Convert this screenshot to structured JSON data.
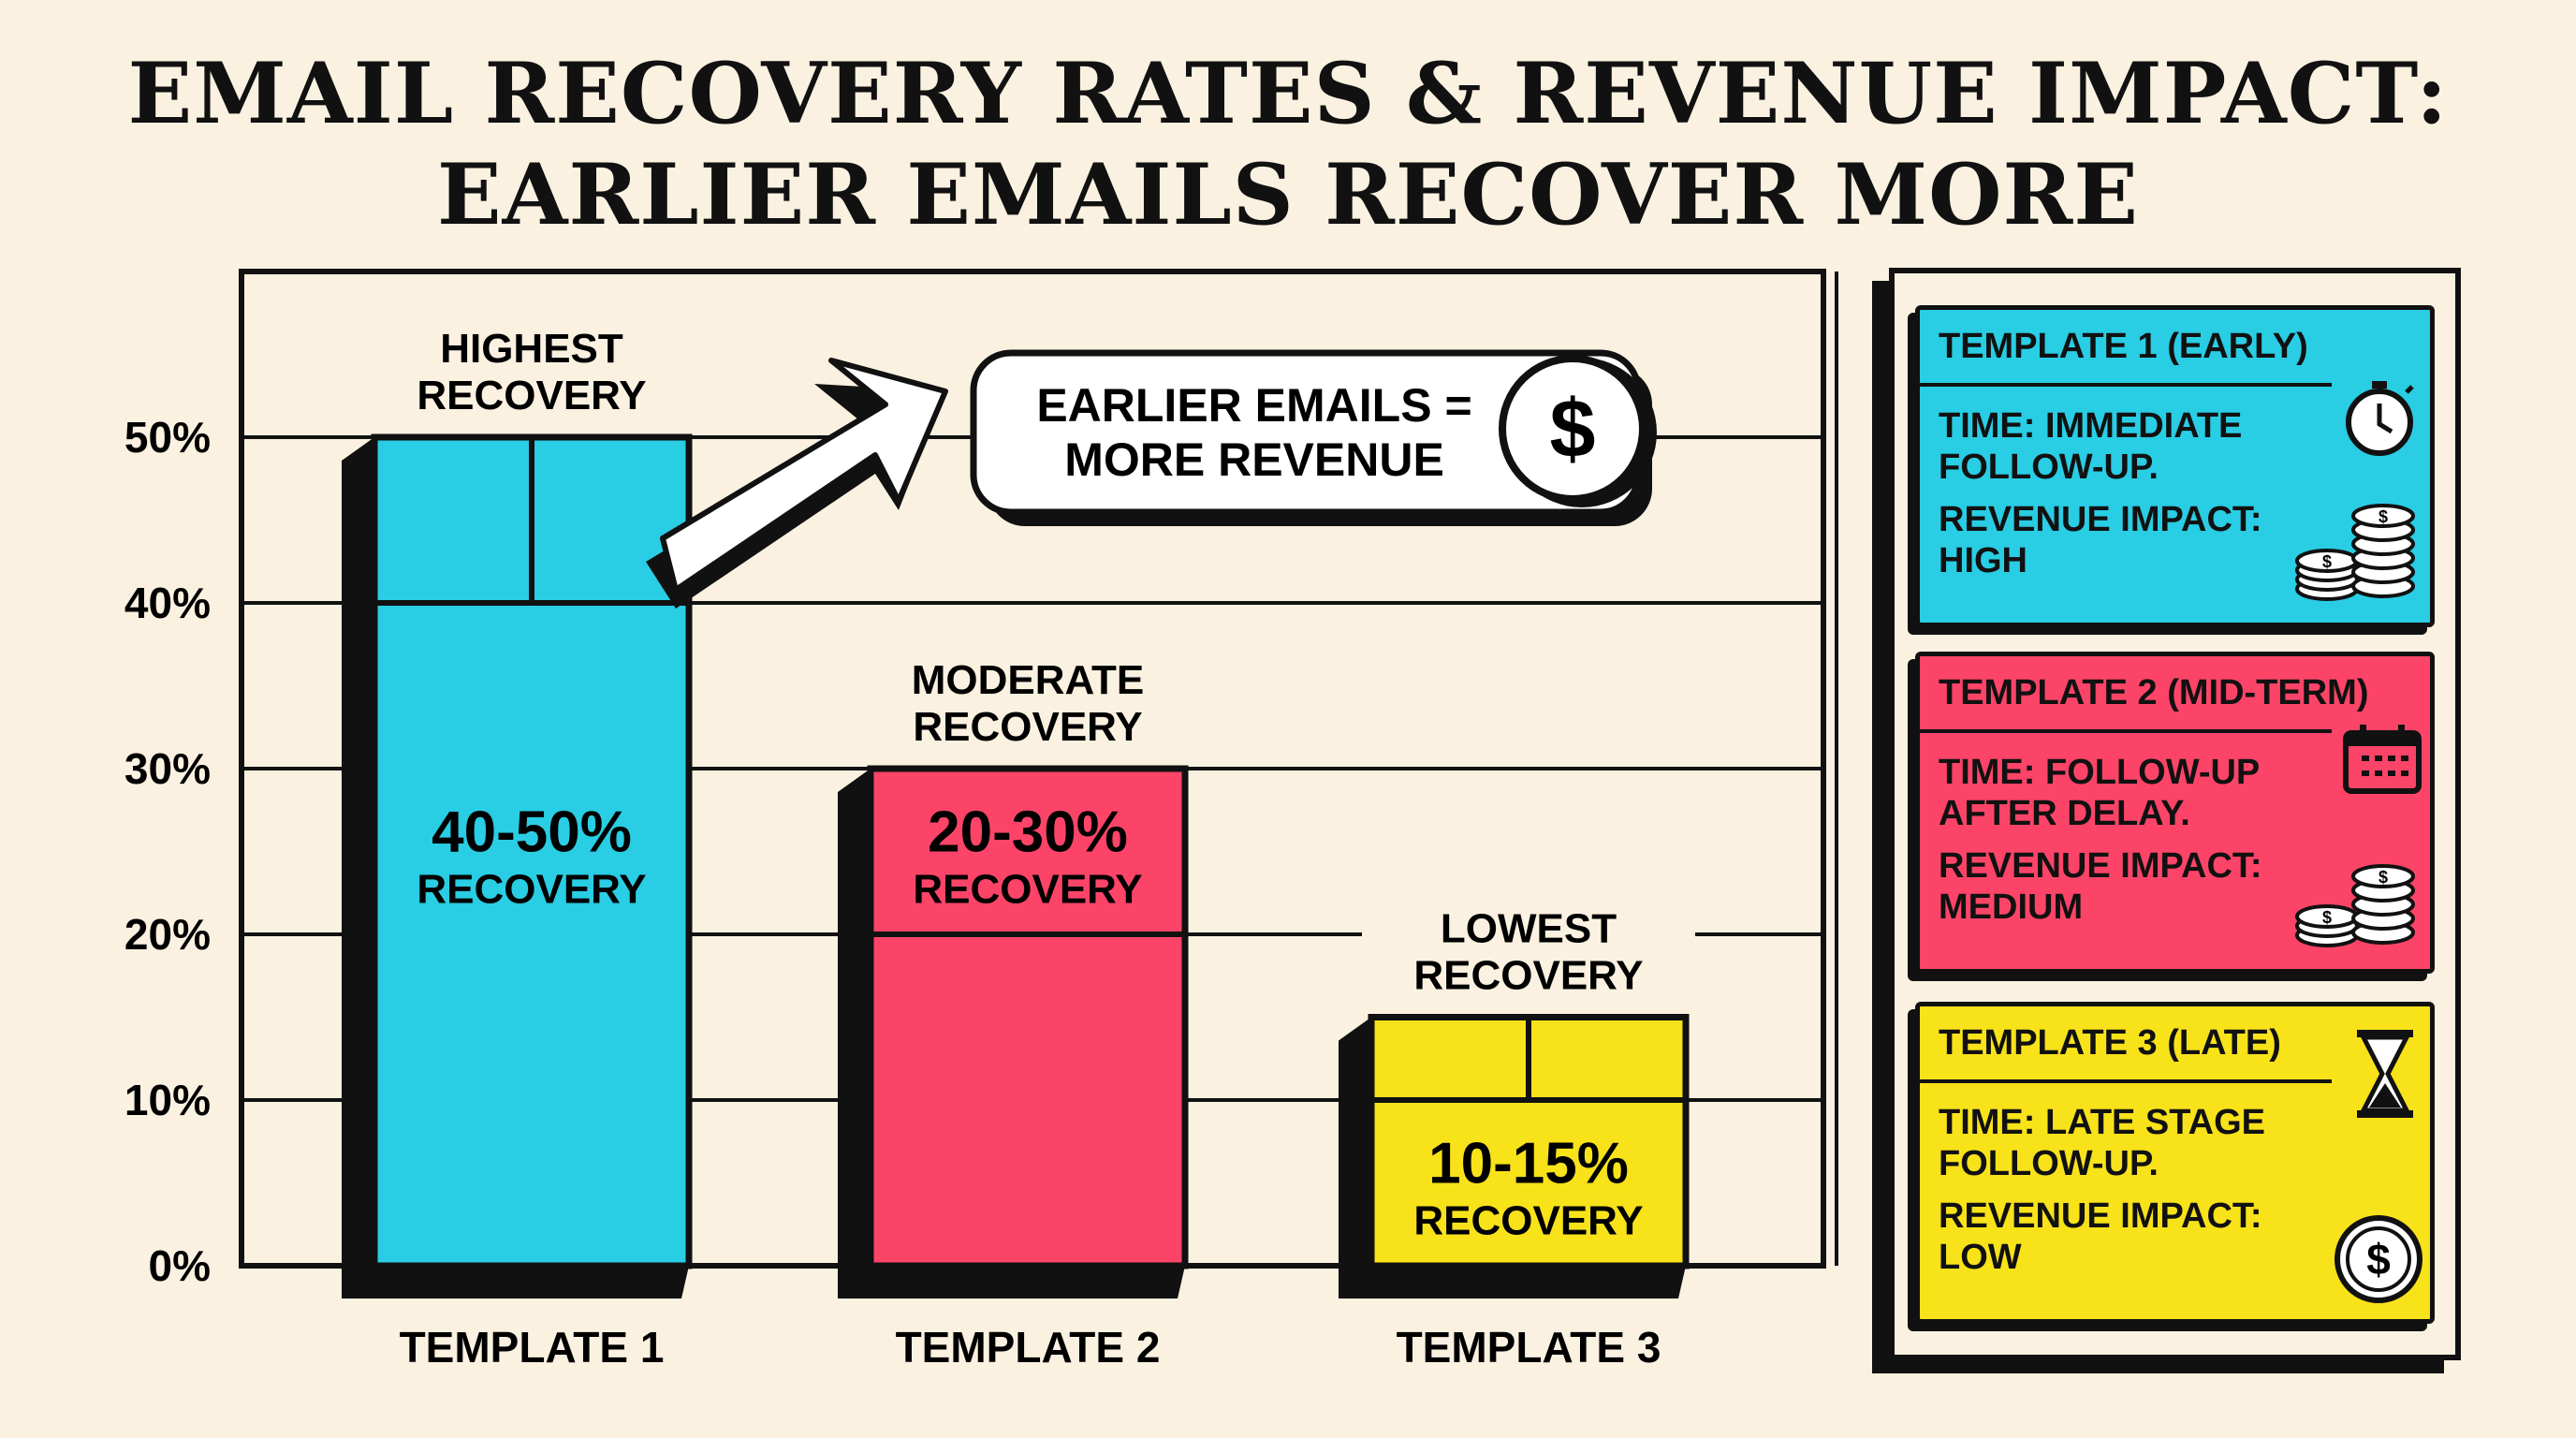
{
  "title": {
    "line1": "EMAIL RECOVERY RATES & REVENUE IMPACT:",
    "line2": "EARLIER EMAILS RECOVER MORE"
  },
  "chart_data": {
    "type": "bar",
    "categories": [
      "TEMPLATE 1",
      "TEMPLATE 2",
      "TEMPLATE 3"
    ],
    "ranges": [
      [
        40,
        50
      ],
      [
        20,
        30
      ],
      [
        10,
        15
      ]
    ],
    "colors": [
      "#29cde4",
      "#fc4468",
      "#f8e21a"
    ],
    "ylim": [
      0,
      50
    ],
    "yticks": [
      "0%",
      "10%",
      "20%",
      "30%",
      "40%",
      "50%"
    ],
    "grid": true,
    "value_labels": [
      [
        "40-50%",
        "RECOVERY"
      ],
      [
        "20-30%",
        "RECOVERY"
      ],
      [
        "10-15%",
        "RECOVERY"
      ]
    ],
    "annotations": [
      [
        "HIGHEST",
        "RECOVERY"
      ],
      [
        "MODERATE",
        "RECOVERY"
      ],
      [
        "LOWEST",
        "RECOVERY"
      ]
    ],
    "callout": [
      "EARLIER EMAILS =",
      "MORE REVENUE"
    ],
    "callout_icon": "dollar-circle-icon"
  },
  "legend": [
    {
      "title": "TEMPLATE 1 (EARLY)",
      "time": [
        "TIME: IMMEDIATE",
        "FOLLOW-UP."
      ],
      "impact": [
        "REVENUE IMPACT:",
        "HIGH"
      ],
      "color": "#29cde4",
      "icon": "stopwatch-icon"
    },
    {
      "title": "TEMPLATE 2 (MID-TERM)",
      "time": [
        "TIME: FOLLOW-UP",
        "AFTER DELAY."
      ],
      "impact": [
        "REVENUE IMPACT:",
        "MEDIUM"
      ],
      "color": "#fc4468",
      "icon": "calendar-icon"
    },
    {
      "title": "TEMPLATE 3 (LATE)",
      "time": [
        "TIME: LATE STAGE",
        "FOLLOW-UP."
      ],
      "impact": [
        "REVENUE IMPACT:",
        "LOW"
      ],
      "color": "#f8e21a",
      "icon": "hourglass-icon"
    }
  ]
}
